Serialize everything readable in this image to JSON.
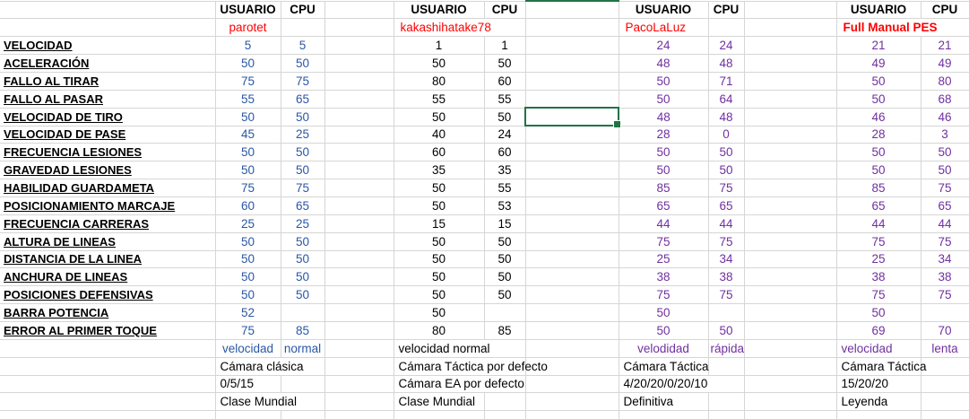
{
  "sheet": {
    "column_headers": {
      "usuario": "USUARIO",
      "cpu": "CPU"
    },
    "row_labels": [
      "VELOCIDAD",
      "ACELERACIÓN",
      "FALLO AL TIRAR",
      "FALLO AL PASAR",
      "VELOCIDAD DE TIRO",
      "VELOCIDAD DE PASE",
      "FRECUENCIA LESIONES",
      "GRAVEDAD LESIONES",
      "HABILIDAD GUARDAMETA",
      "POSICIONAMIENTO MARCAJE",
      "FRECUENCIA CARRERAS",
      "ALTURA DE LINEAS",
      "DISTANCIA DE LA LINEA",
      "ANCHURA DE LINEAS",
      "POSICIONES DEFENSIVAS",
      "BARRA POTENCIA",
      "ERROR AL PRIMER TOQUE"
    ],
    "sets": [
      {
        "name": "parotet",
        "value_color": "#2A57A5",
        "values": [
          [
            "5",
            "5"
          ],
          [
            "50",
            "50"
          ],
          [
            "75",
            "75"
          ],
          [
            "55",
            "65"
          ],
          [
            "50",
            "50"
          ],
          [
            "45",
            "25"
          ],
          [
            "50",
            "50"
          ],
          [
            "50",
            "50"
          ],
          [
            "75",
            "75"
          ],
          [
            "60",
            "65"
          ],
          [
            "25",
            "25"
          ],
          [
            "50",
            "50"
          ],
          [
            "50",
            "50"
          ],
          [
            "50",
            "50"
          ],
          [
            "50",
            "50"
          ],
          [
            "52",
            ""
          ],
          [
            "75",
            "85"
          ]
        ],
        "footer": {
          "speed_usuario": "velocidad",
          "speed_cpu": "normal",
          "camera": "Cámara clásica",
          "settings": "0/5/15",
          "difficulty": "Clase Mundial"
        }
      },
      {
        "name": "kakashihatake78",
        "value_color": "#000000",
        "values": [
          [
            "1",
            "1"
          ],
          [
            "50",
            "50"
          ],
          [
            "80",
            "60"
          ],
          [
            "55",
            "55"
          ],
          [
            "50",
            "50"
          ],
          [
            "40",
            "24"
          ],
          [
            "60",
            "60"
          ],
          [
            "35",
            "35"
          ],
          [
            "50",
            "55"
          ],
          [
            "50",
            "53"
          ],
          [
            "15",
            "15"
          ],
          [
            "50",
            "50"
          ],
          [
            "50",
            "50"
          ],
          [
            "50",
            "50"
          ],
          [
            "50",
            "50"
          ],
          [
            "50",
            ""
          ],
          [
            "80",
            "85"
          ]
        ],
        "footer": {
          "speed": "velocidad normal",
          "camera": "Cámara Táctica por defecto",
          "settings": "Cámara EA por defecto",
          "difficulty": "Clase Mundial"
        }
      },
      {
        "name": "PacoLaLuz",
        "value_color": "#7030A0",
        "values": [
          [
            "24",
            "24"
          ],
          [
            "48",
            "48"
          ],
          [
            "50",
            "71"
          ],
          [
            "50",
            "64"
          ],
          [
            "48",
            "48"
          ],
          [
            "28",
            "0"
          ],
          [
            "50",
            "50"
          ],
          [
            "50",
            "50"
          ],
          [
            "85",
            "75"
          ],
          [
            "65",
            "65"
          ],
          [
            "44",
            "44"
          ],
          [
            "75",
            "75"
          ],
          [
            "25",
            "34"
          ],
          [
            "38",
            "38"
          ],
          [
            "75",
            "75"
          ],
          [
            "50",
            ""
          ],
          [
            "50",
            "50"
          ]
        ],
        "footer": {
          "speed_usuario": "velodidad",
          "speed_cpu": "rápida",
          "camera": "Cámara Táctica",
          "settings": "4/20/20/0/20/10",
          "difficulty": "Definitiva"
        }
      },
      {
        "name": "Full Manual PES",
        "value_color": "#7030A0",
        "values": [
          [
            "21",
            "21"
          ],
          [
            "49",
            "49"
          ],
          [
            "50",
            "80"
          ],
          [
            "50",
            "68"
          ],
          [
            "46",
            "46"
          ],
          [
            "28",
            "3"
          ],
          [
            "50",
            "50"
          ],
          [
            "50",
            "50"
          ],
          [
            "85",
            "75"
          ],
          [
            "65",
            "65"
          ],
          [
            "44",
            "44"
          ],
          [
            "75",
            "75"
          ],
          [
            "25",
            "34"
          ],
          [
            "38",
            "38"
          ],
          [
            "75",
            "75"
          ],
          [
            "50",
            ""
          ],
          [
            "69",
            "70"
          ]
        ],
        "footer": {
          "speed_usuario": "velocidad",
          "speed_cpu": "lenta",
          "camera": "Cámara Táctica",
          "settings": "15/20/20",
          "difficulty": "Leyenda"
        }
      }
    ],
    "selection": {
      "row_label": "VELOCIDAD DE TIRO",
      "row_index": 4,
      "column": "empty-column-after-set-2"
    },
    "colors": {
      "name_red": "#FF0000",
      "blue_values": "#2A57A5",
      "purple_values": "#7030A0",
      "selection_green": "#217346",
      "gridline": "#D6D6D6"
    }
  }
}
